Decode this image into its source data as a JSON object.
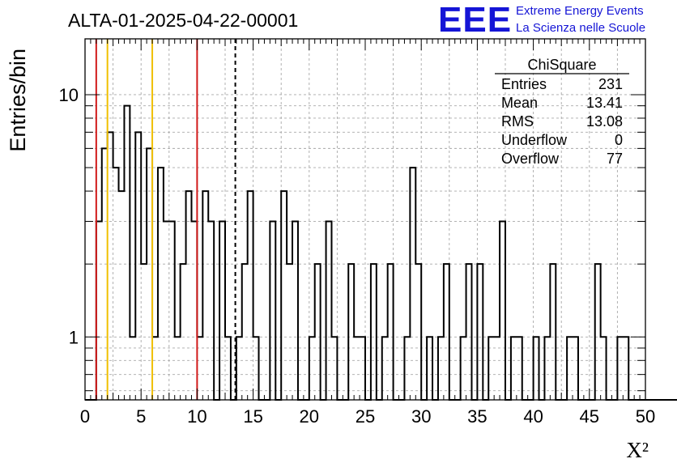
{
  "chart_data": {
    "type": "histogram",
    "title": "ALTA-01-2025-04-22-00001",
    "xlabel": "X²",
    "ylabel": "Entries/bin",
    "xlim": [
      0,
      50
    ],
    "ylim": [
      0.55,
      17
    ],
    "yscale": "log",
    "grid": true,
    "x_ticks": [
      "0",
      "5",
      "10",
      "15",
      "20",
      "25",
      "30",
      "35",
      "40",
      "45",
      "50"
    ],
    "y_ticks": [
      "1",
      "10"
    ],
    "bin_width": 0.5,
    "bin_start": 0,
    "values": [
      0,
      0,
      3,
      6,
      7,
      5,
      4,
      9,
      1,
      7,
      2,
      6,
      1,
      5,
      3,
      3,
      1,
      2,
      4,
      3,
      1,
      4,
      3,
      0,
      3,
      1,
      0,
      1,
      2,
      4,
      1,
      0,
      0,
      3,
      0,
      4,
      2,
      3,
      0,
      0,
      1,
      2,
      0,
      3,
      1,
      0,
      0,
      2,
      1,
      1,
      0,
      2,
      0,
      1,
      2,
      0,
      0,
      1,
      5,
      2,
      0,
      1,
      0,
      1,
      2,
      0,
      0,
      1,
      2,
      0,
      2,
      0,
      1,
      1,
      3,
      0,
      1,
      1,
      0,
      0,
      1,
      0,
      1,
      2,
      0,
      0,
      1,
      1,
      0,
      0,
      0,
      2,
      1,
      0,
      0,
      1,
      1,
      0,
      0,
      0,
      0,
      0,
      0,
      0,
      0,
      0,
      0,
      0,
      0,
      0,
      0,
      0,
      0,
      0,
      0,
      0,
      0,
      0,
      0,
      0,
      0,
      0,
      0,
      0,
      0,
      0,
      0,
      0,
      0,
      0,
      0,
      0,
      0,
      0,
      0,
      0,
      0,
      0,
      0,
      0,
      0,
      0,
      0,
      0,
      0,
      0,
      0,
      0,
      0,
      0
    ],
    "vertical_lines": [
      {
        "x": 1,
        "color": "#d11a1a",
        "style": "solid"
      },
      {
        "x": 2,
        "color": "#f0c000",
        "style": "solid"
      },
      {
        "x": 6,
        "color": "#f0c000",
        "style": "solid"
      },
      {
        "x": 10,
        "color": "#d11a1a",
        "style": "solid"
      },
      {
        "x": 13.41,
        "color": "#000000",
        "style": "dashed"
      }
    ],
    "stats": {
      "title": "ChiSquare",
      "rows": [
        {
          "label": "Entries",
          "value": "231"
        },
        {
          "label": "Mean",
          "value": "13.41"
        },
        {
          "label": "RMS",
          "value": "13.08"
        },
        {
          "label": "Underflow",
          "value": "0"
        },
        {
          "label": "Overflow",
          "value": "77"
        }
      ]
    }
  },
  "logo": {
    "mark": "EEE",
    "line1": "Extreme Energy Events",
    "line2": "La Scienza nelle Scuole",
    "color": "#1515d6"
  }
}
